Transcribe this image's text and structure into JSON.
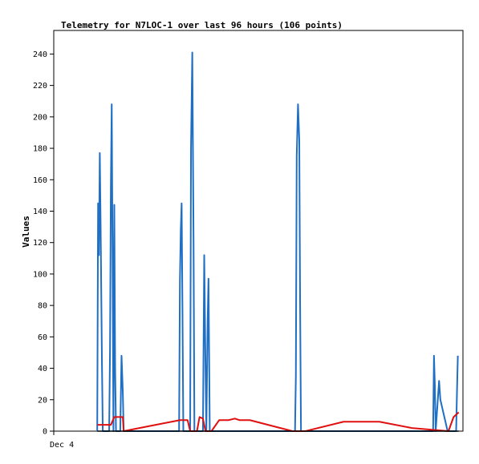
{
  "chart_data": {
    "type": "line",
    "title": "Telemetry for N7LOC-1 over last 96 hours (106 points)",
    "ylabel": "Values",
    "xlabel": "",
    "x_tick_labels": [
      {
        "x": 0,
        "label": "Dec 4"
      }
    ],
    "xlim": [
      0,
      96
    ],
    "ylim": [
      0,
      255
    ],
    "yticks": [
      0,
      20,
      40,
      60,
      80,
      100,
      120,
      140,
      160,
      180,
      200,
      220,
      240
    ],
    "grid": false,
    "legend": "none",
    "series": [
      {
        "color": "#1f6fc4",
        "points": [
          [
            10.2,
            0
          ],
          [
            10.4,
            145
          ],
          [
            10.6,
            112
          ],
          [
            10.8,
            177
          ],
          [
            11.0,
            130
          ],
          [
            11.3,
            45
          ],
          [
            11.5,
            0
          ],
          [
            13.0,
            0
          ],
          [
            13.2,
            52
          ],
          [
            13.4,
            156
          ],
          [
            13.6,
            208
          ],
          [
            13.8,
            108
          ],
          [
            14.0,
            0
          ],
          [
            14.2,
            144
          ],
          [
            14.4,
            40
          ],
          [
            14.6,
            0
          ],
          [
            15.6,
            0
          ],
          [
            15.9,
            48
          ],
          [
            16.2,
            25
          ],
          [
            16.4,
            0
          ],
          [
            29.4,
            0
          ],
          [
            29.6,
            96
          ],
          [
            29.8,
            128
          ],
          [
            30.0,
            145
          ],
          [
            30.2,
            75
          ],
          [
            30.4,
            0
          ],
          [
            32.0,
            0
          ],
          [
            32.2,
            180
          ],
          [
            32.5,
            241
          ],
          [
            32.8,
            120
          ],
          [
            33.0,
            0
          ],
          [
            35.0,
            0
          ],
          [
            35.3,
            112
          ],
          [
            35.6,
            40
          ],
          [
            35.8,
            0
          ],
          [
            36.1,
            70
          ],
          [
            36.3,
            97
          ],
          [
            36.6,
            0
          ],
          [
            56.6,
            0
          ],
          [
            56.8,
            35
          ],
          [
            57.0,
            175
          ],
          [
            57.3,
            208
          ],
          [
            57.6,
            185
          ],
          [
            57.8,
            80
          ],
          [
            58.0,
            0
          ],
          [
            89.0,
            0
          ],
          [
            89.2,
            48
          ],
          [
            89.4,
            30
          ],
          [
            89.6,
            0
          ],
          [
            90.4,
            32
          ],
          [
            90.7,
            20
          ],
          [
            92.4,
            0
          ],
          [
            94.4,
            0
          ],
          [
            94.6,
            25
          ],
          [
            94.8,
            48
          ]
        ]
      },
      {
        "color": "#e01010",
        "points": [
          [
            10.2,
            4
          ],
          [
            13.4,
            4
          ],
          [
            14.2,
            9
          ],
          [
            16.2,
            9
          ],
          [
            16.4,
            0
          ],
          [
            22.0,
            3
          ],
          [
            29.6,
            7
          ],
          [
            31.4,
            7
          ],
          [
            32.0,
            0
          ],
          [
            33.6,
            0
          ],
          [
            34.2,
            9
          ],
          [
            35.0,
            8
          ],
          [
            35.6,
            0
          ],
          [
            37.0,
            0
          ],
          [
            38.8,
            7
          ],
          [
            41.0,
            7
          ],
          [
            42.5,
            8
          ],
          [
            43.6,
            7
          ],
          [
            46.0,
            7
          ],
          [
            56.0,
            0
          ],
          [
            59.0,
            0
          ],
          [
            68.0,
            6
          ],
          [
            76.4,
            6
          ],
          [
            84.0,
            2
          ],
          [
            92.6,
            0
          ],
          [
            93.8,
            9
          ],
          [
            95.0,
            12
          ]
        ]
      },
      {
        "color": "#000000",
        "points": [
          [
            10.2,
            0
          ],
          [
            95.0,
            0
          ]
        ]
      }
    ]
  }
}
